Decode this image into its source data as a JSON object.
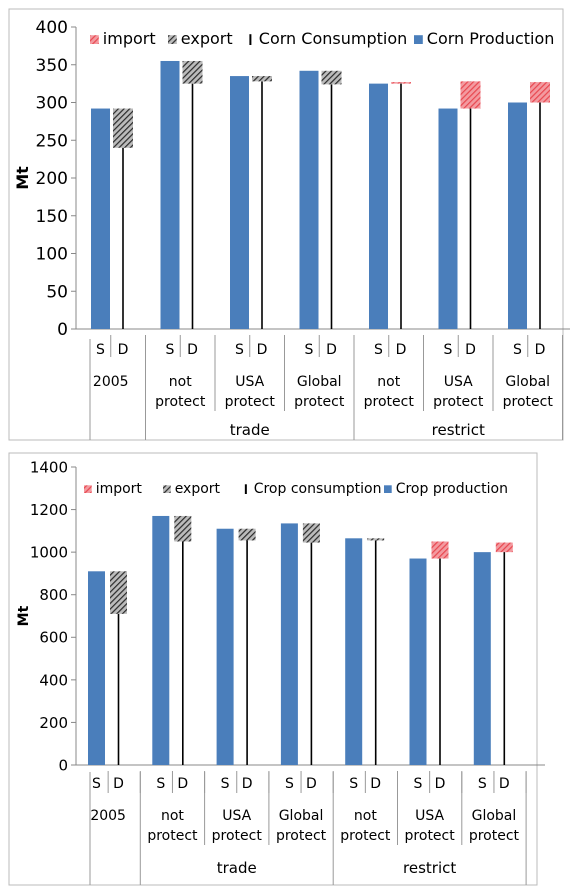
{
  "chart_data": [
    {
      "type": "bar",
      "subtype": "stacked-bar-with-trade",
      "ylabel": "Mt",
      "ylim": [
        0,
        400
      ],
      "ytick_step": 50,
      "ytick_labels": [
        "0",
        "50",
        "100",
        "150",
        "200",
        "250",
        "300",
        "350",
        "400"
      ],
      "legend": {
        "placement": "top",
        "entries": [
          {
            "label": "import",
            "color": "#e8474f",
            "pattern": "hatch"
          },
          {
            "label": "export",
            "color": "#333333",
            "pattern": "hatch"
          },
          {
            "label": "Corn Consumption",
            "color": "#000000",
            "pattern": "line"
          },
          {
            "label": "Corn Production",
            "color": "#4a7ebb",
            "pattern": "solid"
          }
        ]
      },
      "sd_labels": [
        "S",
        "D"
      ],
      "scenarios": [
        {
          "label_lines": [
            "2005"
          ],
          "production": 292,
          "consumption": 240,
          "export": 52,
          "import": 0
        },
        {
          "label_lines": [
            "not",
            "protect"
          ],
          "production": 355,
          "consumption": 325,
          "export": 30,
          "import": 0
        },
        {
          "label_lines": [
            "USA",
            "protect"
          ],
          "production": 335,
          "consumption": 328,
          "export": 7,
          "import": 0
        },
        {
          "label_lines": [
            "Global",
            "protect"
          ],
          "production": 342,
          "consumption": 324,
          "export": 18,
          "import": 0
        },
        {
          "label_lines": [
            "not",
            "protect"
          ],
          "production": 325,
          "consumption": 327,
          "export": 0,
          "import": 2
        },
        {
          "label_lines": [
            "USA",
            "protect"
          ],
          "production": 292,
          "consumption": 328,
          "export": 0,
          "import": 36
        },
        {
          "label_lines": [
            "Global",
            "protect"
          ],
          "production": 300,
          "consumption": 327,
          "export": 0,
          "import": 27
        }
      ],
      "group_labels": [
        {
          "label": "trade",
          "start": 1,
          "end": 3
        },
        {
          "label": "restrict",
          "start": 4,
          "end": 6
        }
      ]
    },
    {
      "type": "bar",
      "subtype": "stacked-bar-with-trade",
      "ylabel": "Mt",
      "ylim": [
        0,
        1400
      ],
      "ytick_step": 200,
      "ytick_labels": [
        "0",
        "200",
        "400",
        "600",
        "800",
        "1000",
        "1200",
        "1400"
      ],
      "legend": {
        "placement": "top",
        "entries": [
          {
            "label": "import",
            "color": "#e8474f",
            "pattern": "hatch"
          },
          {
            "label": "export",
            "color": "#333333",
            "pattern": "hatch"
          },
          {
            "label": "Crop consumption",
            "color": "#000000",
            "pattern": "line"
          },
          {
            "label": "Crop production",
            "color": "#4a7ebb",
            "pattern": "solid"
          }
        ]
      },
      "sd_labels": [
        "S",
        "D"
      ],
      "scenarios": [
        {
          "label_lines": [
            "2005"
          ],
          "production": 910,
          "consumption": 710,
          "export": 200,
          "import": 0
        },
        {
          "label_lines": [
            "not",
            "protect"
          ],
          "production": 1170,
          "consumption": 1050,
          "export": 120,
          "import": 0
        },
        {
          "label_lines": [
            "USA",
            "protect"
          ],
          "production": 1110,
          "consumption": 1055,
          "export": 55,
          "import": 0
        },
        {
          "label_lines": [
            "Global",
            "protect"
          ],
          "production": 1135,
          "consumption": 1045,
          "export": 90,
          "import": 0
        },
        {
          "label_lines": [
            "not",
            "protect"
          ],
          "production": 1065,
          "consumption": 1055,
          "export": 10,
          "import": 0
        },
        {
          "label_lines": [
            "USA",
            "protect"
          ],
          "production": 970,
          "consumption": 1050,
          "export": 0,
          "import": 80
        },
        {
          "label_lines": [
            "Global",
            "protect"
          ],
          "production": 1000,
          "consumption": 1045,
          "export": 0,
          "import": 45
        }
      ],
      "group_labels": [
        {
          "label": "trade",
          "start": 1,
          "end": 3
        },
        {
          "label": "restrict",
          "start": 4,
          "end": 6
        }
      ]
    }
  ]
}
